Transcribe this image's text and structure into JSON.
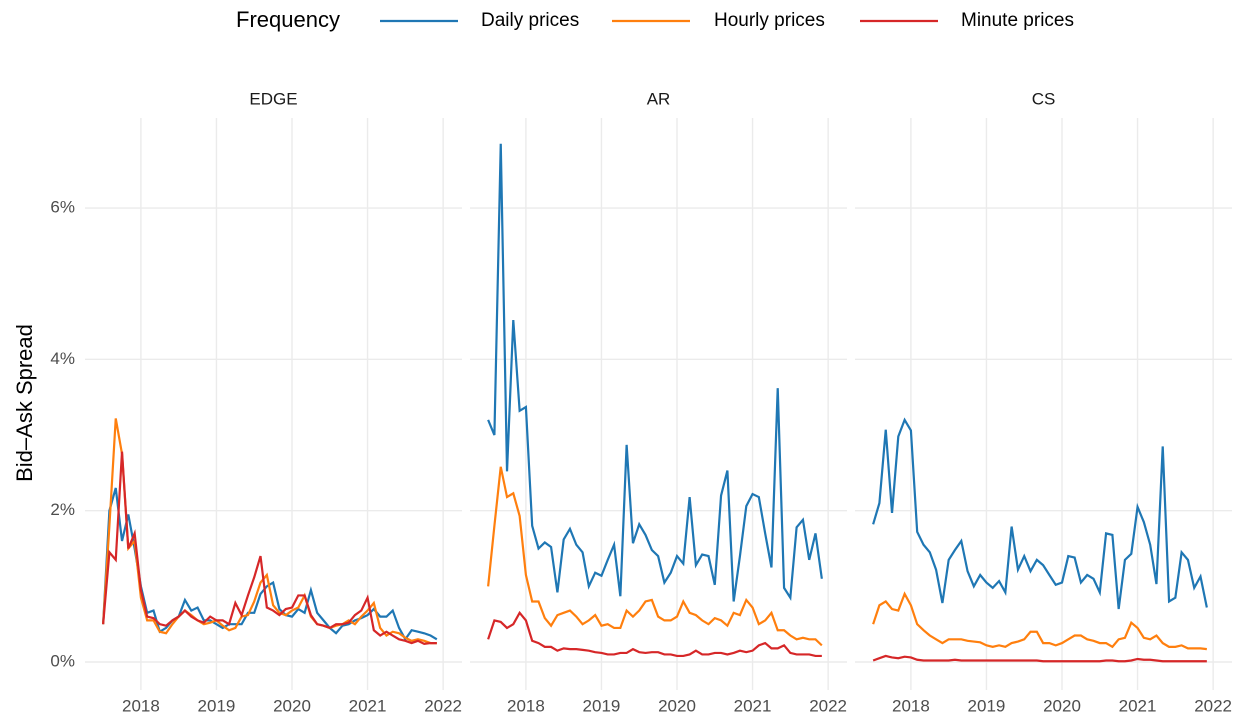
{
  "legend": {
    "title": "Frequency"
  },
  "ylabel": "Bid–Ask Spread",
  "chart_data": [
    {
      "type": "line",
      "title": "EDGE",
      "x": [
        2017.5,
        2017.583,
        2017.667,
        2017.75,
        2017.833,
        2017.917,
        2018,
        2018.083,
        2018.167,
        2018.25,
        2018.333,
        2018.417,
        2018.5,
        2018.583,
        2018.667,
        2018.75,
        2018.833,
        2018.917,
        2019,
        2019.083,
        2019.167,
        2019.25,
        2019.333,
        2019.417,
        2019.5,
        2019.583,
        2019.667,
        2019.75,
        2019.833,
        2019.917,
        2020,
        2020.083,
        2020.167,
        2020.25,
        2020.333,
        2020.417,
        2020.5,
        2020.583,
        2020.667,
        2020.75,
        2020.833,
        2020.917,
        2021,
        2021.083,
        2021.167,
        2021.25,
        2021.333,
        2021.417,
        2021.5,
        2021.583,
        2021.667,
        2021.75,
        2021.833,
        2021.917
      ],
      "xlim": [
        2017.26,
        2022.25
      ],
      "xticks": [
        2018,
        2019,
        2020,
        2021,
        2022
      ],
      "ylim": [
        -0.37,
        7.19
      ],
      "yticks": [
        {
          "value": 0,
          "label": "0%"
        },
        {
          "value": 2,
          "label": "2%"
        },
        {
          "value": 4,
          "label": "4%"
        },
        {
          "value": 6,
          "label": "6%"
        }
      ],
      "grid": true,
      "series": [
        {
          "name": "Daily prices",
          "color": "#1f77b4",
          "values": [
            0.5,
            2.0,
            2.3,
            1.6,
            1.95,
            1.5,
            1.0,
            0.65,
            0.68,
            0.4,
            0.45,
            0.55,
            0.6,
            0.82,
            0.68,
            0.72,
            0.55,
            0.55,
            0.5,
            0.45,
            0.5,
            0.5,
            0.5,
            0.65,
            0.65,
            0.9,
            1.0,
            1.05,
            0.7,
            0.62,
            0.6,
            0.7,
            0.65,
            0.95,
            0.65,
            0.55,
            0.45,
            0.38,
            0.48,
            0.5,
            0.55,
            0.58,
            0.62,
            0.7,
            0.6,
            0.6,
            0.68,
            0.45,
            0.3,
            0.42,
            0.4,
            0.38,
            0.35,
            0.3
          ]
        },
        {
          "name": "Hourly prices",
          "color": "#ff7f0e",
          "values": [
            0.5,
            1.8,
            3.22,
            2.75,
            1.5,
            1.6,
            0.85,
            0.55,
            0.55,
            0.4,
            0.38,
            0.5,
            0.6,
            0.68,
            0.62,
            0.55,
            0.5,
            0.52,
            0.55,
            0.48,
            0.42,
            0.45,
            0.6,
            0.62,
            0.8,
            1.05,
            1.15,
            0.75,
            0.65,
            0.62,
            0.68,
            0.72,
            0.88,
            0.6,
            0.5,
            0.48,
            0.45,
            0.48,
            0.5,
            0.55,
            0.5,
            0.6,
            0.68,
            0.78,
            0.45,
            0.35,
            0.4,
            0.38,
            0.32,
            0.28,
            0.3,
            0.28,
            0.25,
            0.25
          ]
        },
        {
          "name": "Minute prices",
          "color": "#d62728",
          "values": [
            0.5,
            1.45,
            1.35,
            2.78,
            1.5,
            1.7,
            0.95,
            0.6,
            0.58,
            0.5,
            0.48,
            0.55,
            0.6,
            0.68,
            0.6,
            0.55,
            0.52,
            0.6,
            0.55,
            0.55,
            0.5,
            0.78,
            0.62,
            0.88,
            1.12,
            1.4,
            0.72,
            0.68,
            0.62,
            0.7,
            0.72,
            0.88,
            0.88,
            0.62,
            0.5,
            0.48,
            0.45,
            0.5,
            0.5,
            0.52,
            0.62,
            0.68,
            0.85,
            0.42,
            0.35,
            0.4,
            0.35,
            0.3,
            0.28,
            0.25,
            0.28,
            0.24,
            0.25,
            0.25
          ]
        }
      ]
    },
    {
      "type": "line",
      "title": "AR",
      "x": [
        2017.5,
        2017.583,
        2017.667,
        2017.75,
        2017.833,
        2017.917,
        2018,
        2018.083,
        2018.167,
        2018.25,
        2018.333,
        2018.417,
        2018.5,
        2018.583,
        2018.667,
        2018.75,
        2018.833,
        2018.917,
        2019,
        2019.083,
        2019.167,
        2019.25,
        2019.333,
        2019.417,
        2019.5,
        2019.583,
        2019.667,
        2019.75,
        2019.833,
        2019.917,
        2020,
        2020.083,
        2020.167,
        2020.25,
        2020.333,
        2020.417,
        2020.5,
        2020.583,
        2020.667,
        2020.75,
        2020.833,
        2020.917,
        2021,
        2021.083,
        2021.167,
        2021.25,
        2021.333,
        2021.417,
        2021.5,
        2021.583,
        2021.667,
        2021.75,
        2021.833,
        2021.917
      ],
      "xlim": [
        2017.26,
        2022.25
      ],
      "xticks": [
        2018,
        2019,
        2020,
        2021,
        2022
      ],
      "series": [
        {
          "name": "Daily prices",
          "color": "#1f77b4",
          "values": [
            3.2,
            3.0,
            6.85,
            2.52,
            4.52,
            3.32,
            3.37,
            1.8,
            1.5,
            1.58,
            1.52,
            0.92,
            1.62,
            1.76,
            1.55,
            1.45,
            1.0,
            1.18,
            1.14,
            1.35,
            1.55,
            0.87,
            2.87,
            1.57,
            1.82,
            1.68,
            1.48,
            1.4,
            1.05,
            1.18,
            1.4,
            1.3,
            2.18,
            1.28,
            1.42,
            1.4,
            1.02,
            2.2,
            2.53,
            0.8,
            1.4,
            2.06,
            2.22,
            2.18,
            1.7,
            1.25,
            3.62,
            0.98,
            0.85,
            1.78,
            1.88,
            1.35,
            1.7,
            1.1
          ]
        },
        {
          "name": "Hourly prices",
          "color": "#ff7f0e",
          "values": [
            1.0,
            1.8,
            2.58,
            2.18,
            2.23,
            1.93,
            1.15,
            0.8,
            0.8,
            0.58,
            0.48,
            0.62,
            0.65,
            0.68,
            0.6,
            0.5,
            0.55,
            0.62,
            0.48,
            0.5,
            0.45,
            0.45,
            0.68,
            0.6,
            0.68,
            0.8,
            0.82,
            0.6,
            0.55,
            0.55,
            0.6,
            0.8,
            0.65,
            0.62,
            0.55,
            0.5,
            0.58,
            0.55,
            0.48,
            0.65,
            0.62,
            0.82,
            0.72,
            0.5,
            0.55,
            0.65,
            0.42,
            0.42,
            0.35,
            0.3,
            0.32,
            0.3,
            0.3,
            0.22
          ]
        },
        {
          "name": "Minute prices",
          "color": "#d62728",
          "values": [
            0.3,
            0.55,
            0.53,
            0.45,
            0.5,
            0.65,
            0.55,
            0.28,
            0.25,
            0.2,
            0.2,
            0.15,
            0.18,
            0.17,
            0.17,
            0.16,
            0.15,
            0.13,
            0.12,
            0.1,
            0.1,
            0.12,
            0.12,
            0.17,
            0.13,
            0.12,
            0.13,
            0.13,
            0.1,
            0.1,
            0.08,
            0.08,
            0.1,
            0.15,
            0.1,
            0.1,
            0.12,
            0.12,
            0.1,
            0.12,
            0.15,
            0.13,
            0.15,
            0.22,
            0.25,
            0.18,
            0.18,
            0.22,
            0.12,
            0.1,
            0.1,
            0.1,
            0.08,
            0.08
          ]
        }
      ]
    },
    {
      "type": "line",
      "title": "CS",
      "x": [
        2017.5,
        2017.583,
        2017.667,
        2017.75,
        2017.833,
        2017.917,
        2018,
        2018.083,
        2018.167,
        2018.25,
        2018.333,
        2018.417,
        2018.5,
        2018.583,
        2018.667,
        2018.75,
        2018.833,
        2018.917,
        2019,
        2019.083,
        2019.167,
        2019.25,
        2019.333,
        2019.417,
        2019.5,
        2019.583,
        2019.667,
        2019.75,
        2019.833,
        2019.917,
        2020,
        2020.083,
        2020.167,
        2020.25,
        2020.333,
        2020.417,
        2020.5,
        2020.583,
        2020.667,
        2020.75,
        2020.833,
        2020.917,
        2021,
        2021.083,
        2021.167,
        2021.25,
        2021.333,
        2021.417,
        2021.5,
        2021.583,
        2021.667,
        2021.75,
        2021.833,
        2021.917
      ],
      "xlim": [
        2017.26,
        2022.25
      ],
      "xticks": [
        2018,
        2019,
        2020,
        2021,
        2022
      ],
      "series": [
        {
          "name": "Daily prices",
          "color": "#1f77b4",
          "values": [
            1.82,
            2.1,
            3.07,
            1.97,
            2.98,
            3.2,
            3.06,
            1.72,
            1.55,
            1.45,
            1.22,
            0.78,
            1.35,
            1.48,
            1.6,
            1.2,
            1.0,
            1.15,
            1.05,
            0.98,
            1.07,
            0.92,
            1.79,
            1.22,
            1.4,
            1.2,
            1.35,
            1.28,
            1.15,
            1.02,
            1.05,
            1.4,
            1.38,
            1.05,
            1.15,
            1.1,
            0.92,
            1.7,
            1.68,
            0.7,
            1.35,
            1.43,
            2.05,
            1.85,
            1.55,
            1.03,
            2.85,
            0.8,
            0.85,
            1.45,
            1.35,
            0.98,
            1.13,
            0.72
          ]
        },
        {
          "name": "Hourly prices",
          "color": "#ff7f0e",
          "values": [
            0.5,
            0.75,
            0.8,
            0.7,
            0.68,
            0.9,
            0.75,
            0.5,
            0.42,
            0.35,
            0.3,
            0.25,
            0.3,
            0.3,
            0.3,
            0.28,
            0.27,
            0.26,
            0.22,
            0.2,
            0.22,
            0.2,
            0.25,
            0.27,
            0.3,
            0.4,
            0.4,
            0.25,
            0.25,
            0.22,
            0.25,
            0.3,
            0.35,
            0.35,
            0.3,
            0.28,
            0.25,
            0.25,
            0.2,
            0.3,
            0.32,
            0.52,
            0.45,
            0.32,
            0.3,
            0.35,
            0.25,
            0.2,
            0.2,
            0.22,
            0.18,
            0.18,
            0.18,
            0.17
          ]
        },
        {
          "name": "Minute prices",
          "color": "#d62728",
          "values": [
            0.02,
            0.05,
            0.08,
            0.06,
            0.05,
            0.07,
            0.06,
            0.03,
            0.02,
            0.02,
            0.02,
            0.02,
            0.02,
            0.03,
            0.02,
            0.02,
            0.02,
            0.02,
            0.02,
            0.02,
            0.02,
            0.02,
            0.02,
            0.02,
            0.02,
            0.02,
            0.02,
            0.01,
            0.01,
            0.01,
            0.01,
            0.01,
            0.01,
            0.01,
            0.01,
            0.01,
            0.01,
            0.02,
            0.02,
            0.01,
            0.01,
            0.02,
            0.04,
            0.03,
            0.03,
            0.02,
            0.01,
            0.01,
            0.01,
            0.01,
            0.01,
            0.01,
            0.01,
            0.01
          ]
        }
      ]
    }
  ]
}
